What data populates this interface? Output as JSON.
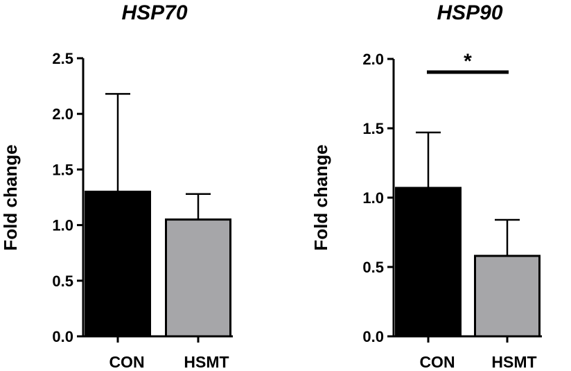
{
  "chart_data": [
    {
      "type": "bar",
      "title": "HSP70",
      "xlabel": "",
      "ylabel": "Fold change",
      "ylim": [
        0,
        2.5
      ],
      "yticks": [
        "0.0",
        "0.5",
        "1.0",
        "1.5",
        "2.0",
        "2.5"
      ],
      "categories": [
        "CON",
        "HSMT"
      ],
      "values": [
        1.3,
        1.05
      ],
      "errors": [
        0.88,
        0.23
      ],
      "colors": [
        "#000000",
        "#a6a6a9"
      ],
      "significance": []
    },
    {
      "type": "bar",
      "title": "HSP90",
      "xlabel": "",
      "ylabel": "Fold change",
      "ylim": [
        0,
        2.0
      ],
      "yticks": [
        "0.0",
        "0.5",
        "1.0",
        "1.5",
        "2.0"
      ],
      "categories": [
        "CON",
        "HSMT"
      ],
      "values": [
        1.07,
        0.58
      ],
      "errors": [
        0.4,
        0.26
      ],
      "colors": [
        "#000000",
        "#a6a6a9"
      ],
      "significance": [
        {
          "from": 0,
          "to": 1,
          "label": "*"
        }
      ]
    }
  ]
}
